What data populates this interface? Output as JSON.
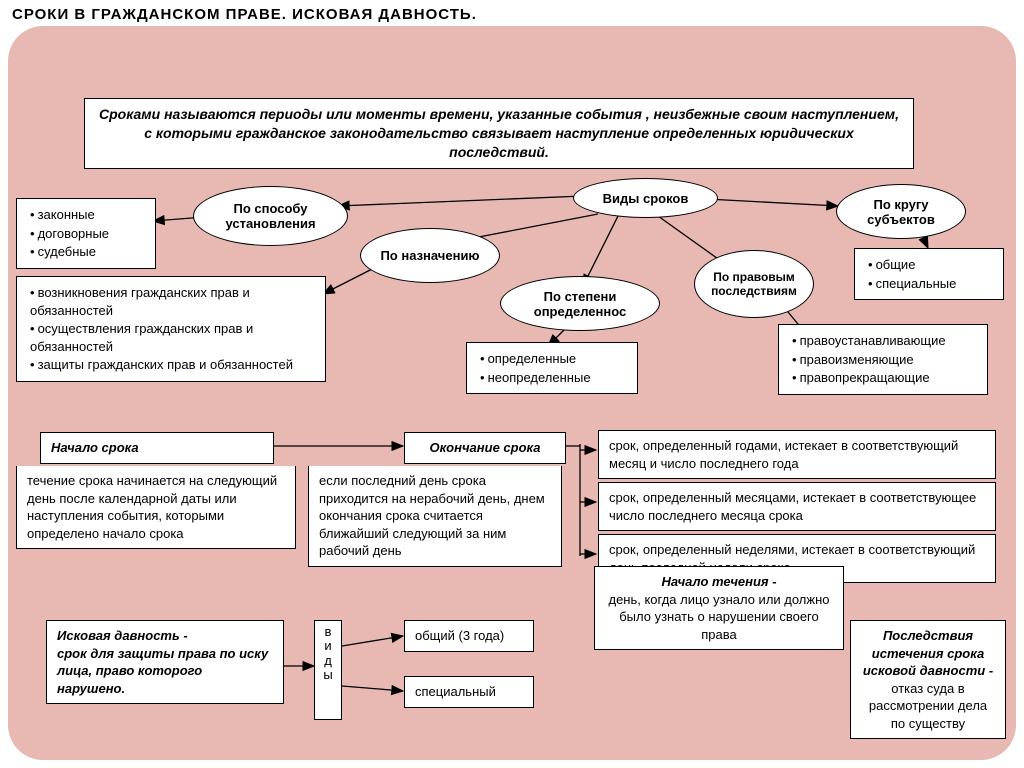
{
  "title": "СРОКИ  В  ГРАЖДАНСКОМ  ПРАВЕ.   ИСКОВАЯ  ДАВНОСТЬ.",
  "definition": "Сроками  называются   периоды или моменты времени, указанные события , неизбежные своим наступлением, с которыми гражданское законодательство связывает наступление определенных юридических последствий.",
  "colors": {
    "bg": "#e8b9b2",
    "box_bg": "#ffffff",
    "border": "#000000"
  },
  "ellipses": {
    "center": "Виды сроков",
    "e1": "По способу установления",
    "e2": "По назначению",
    "e3": "По степени определеннос",
    "e4": "По правовым последствиям",
    "e5": "По кругу субъектов"
  },
  "lists": {
    "l1": [
      "законные",
      "договорные",
      "судебные"
    ],
    "l2": [
      "возникновения гражданских прав и обязанностей",
      "осуществления гражданских прав и обязанностей",
      "защиты гражданских прав и обязанностей"
    ],
    "l3": [
      "определенные",
      "неопределенные"
    ],
    "l4": [
      "правоустанавливающие",
      "правоизменяющие",
      "правопрекращающие"
    ],
    "l5": [
      "общие",
      "специальные"
    ]
  },
  "mid": {
    "start_head": "Начало срока",
    "start_body": "течение срока начинается на следующий день после календарной даты или наступления события, которыми определено начало срока",
    "end_head": "Окончание срока",
    "end_body": "если последний день срока приходится   на нерабочий день, днем окончания срока считается ближайший следующий за ним рабочий день",
    "r1": "срок, определенный годами, истекает в соответствующий месяц и число последнего года",
    "r2": "срок, определенный месяцами, истекает в соответствующее число последнего месяца срока",
    "r3": "срок, определенный неделями, истекает в соответствующий день последней недели срока"
  },
  "bottom": {
    "isk_head": "Исковая давность  -",
    "isk_body": "срок для защиты права      по иску лица, право которого нарушено.",
    "vidy": "виды",
    "v1": "общий  (3 года)",
    "v2": "специальный",
    "nach_head": "Начало течения  -",
    "nach_body": "день, когда лицо узнало или должно было узнать о нарушении своего права",
    "posl_head": "Последствия истечения срока исковой давности -",
    "posl_body": "отказ суда в рассмотрении дела по существу"
  }
}
